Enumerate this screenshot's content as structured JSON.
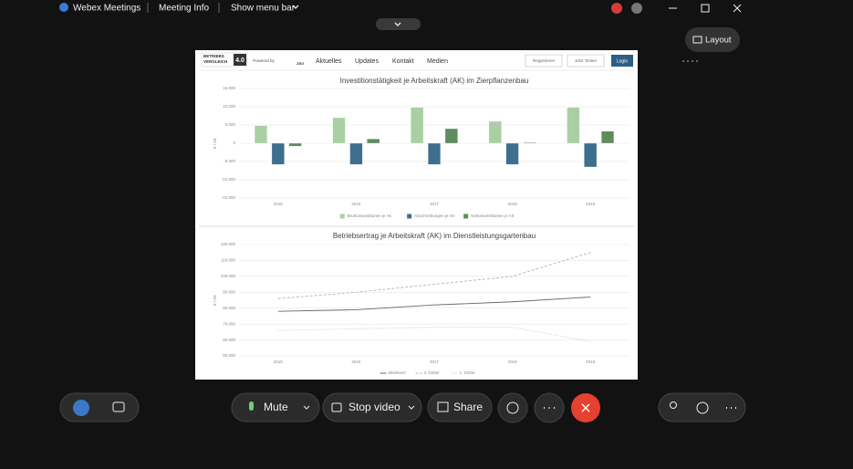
{
  "title_bar": {
    "app": "Webex Meetings",
    "menu": [
      "Meeting Info",
      "Show menu bar"
    ]
  },
  "layout_button": "Layout",
  "shared_screen": {
    "logo": {
      "line1": "BETRIEBS",
      "line2": "VERGLEICH",
      "version": "4.0"
    },
    "powered_by": "Powered by",
    "powered_by_logo": "ZBG",
    "nav": [
      "Aktuelles",
      "Updates",
      "Kontakt",
      "Medien"
    ],
    "buttons": [
      "Registrieren",
      "Jetzt Testen",
      "Login"
    ],
    "charts": [
      {
        "type": "bar",
        "title": "Investitionstätigkeit je Arbeitskraft (AK) im Zierpflanzenbau",
        "y_label": "€ / AK",
        "categories": [
          "2015",
          "2016",
          "2017",
          "2018",
          "2019"
        ],
        "series": [
          {
            "name": "Bruttoinvestitionen je AK",
            "color": "#a9cfa3",
            "values": [
              4800,
              7000,
              9800,
              6000,
              9800
            ]
          },
          {
            "name": "Abschreibungen je AK",
            "color": "#3e6f8e",
            "values": [
              -5800,
              -5800,
              -5800,
              -5800,
              -6500
            ]
          },
          {
            "name": "Nettoinvestitionen je AK",
            "color": "#5e8c5e",
            "values": [
              -800,
              1200,
              4000,
              200,
              3300
            ]
          }
        ],
        "ylim": [
          -15000,
          15000
        ],
        "yticks": [
          {
            "value": -15000,
            "label": "-15.000"
          },
          {
            "value": -10000,
            "label": "-10.000"
          },
          {
            "value": -5000,
            "label": "-5.000"
          },
          0,
          {
            "value": 5000,
            "label": "5.000"
          },
          {
            "value": 10000,
            "label": "10.000"
          },
          {
            "value": 15000,
            "label": "15.000"
          }
        ],
        "grid": true,
        "legend": "bottom"
      },
      {
        "type": "line",
        "title": "Betriebsertrag je Arbeitskraft (AK) im Dienstleistungsgartenbau",
        "y_label": "€ / AK",
        "categories": [
          "2015",
          "2016",
          "2017",
          "2018",
          "2019"
        ],
        "series": [
          {
            "name": "Mittelwert",
            "color": "#666666",
            "line_style": "solid",
            "values": [
              78000,
              79000,
              82000,
              84000,
              87000
            ]
          },
          {
            "name": "3. Drittel",
            "color": "#c9a9b4",
            "line_style": "dashed",
            "values": [
              86000,
              90000,
              95000,
              100000,
              115000
            ]
          },
          {
            "name": "1. Drittel",
            "color": "#c8c8d8",
            "line_style": "dotted",
            "values": [
              66000,
              67000,
              68000,
              68000,
              59000
            ]
          }
        ],
        "ylim": [
          50000,
          120000
        ],
        "yticks": [
          {
            "value": 50000,
            "label": "50.000"
          },
          {
            "value": 60000,
            "label": "60.000"
          },
          {
            "value": 70000,
            "label": "70.000"
          },
          {
            "value": 80000,
            "label": "80.000"
          },
          {
            "value": 90000,
            "label": "90.000"
          },
          {
            "value": 100000,
            "label": "100.000"
          },
          {
            "value": 110000,
            "label": "110.000"
          },
          {
            "value": 120000,
            "label": "120.000"
          }
        ],
        "grid": true,
        "legend": "bottom"
      }
    ]
  },
  "controls": {
    "mute": "Mute",
    "stop_video": "Stop video",
    "share": "Share"
  }
}
